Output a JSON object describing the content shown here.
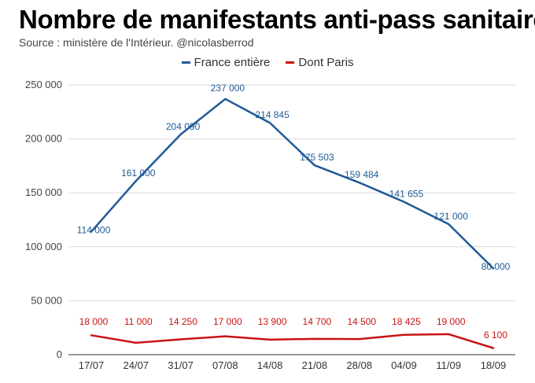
{
  "chart_data": {
    "type": "line",
    "title": "Nombre de manifestants anti-pass sanitaire",
    "subtitle": "Source : ministère de l'Intérieur. @nicolasberrod",
    "categories": [
      "17/07",
      "24/07",
      "31/07",
      "07/08",
      "14/08",
      "21/08",
      "28/08",
      "04/09",
      "11/09",
      "18/09"
    ],
    "series": [
      {
        "name": "France entière",
        "color": "#1f5a96",
        "values": [
          114000,
          161000,
          204090,
          237000,
          214845,
          175503,
          159484,
          141655,
          121000,
          80000
        ],
        "labels": [
          "114 000",
          "161 000",
          "204 090",
          "237 000",
          "214 845",
          "175 503",
          "159 484",
          "141 655",
          "121 000",
          "80 000"
        ]
      },
      {
        "name": "Dont Paris",
        "color": "#c81414",
        "values": [
          18000,
          11000,
          14250,
          17000,
          13900,
          14700,
          14500,
          18425,
          19000,
          6100
        ],
        "labels": [
          "18 000",
          "11 000",
          "14 250",
          "17 000",
          "13 900",
          "14 700",
          "14 500",
          "18 425",
          "19 000",
          "6 100"
        ]
      }
    ],
    "ylim": [
      0,
      250000
    ],
    "yticks": [
      0,
      50000,
      100000,
      150000,
      200000,
      250000
    ],
    "ytick_labels": [
      "0",
      "50 000",
      "100 000",
      "150 000",
      "200 000",
      "250 000"
    ],
    "xlabel": "",
    "ylabel": "",
    "grid": true,
    "legend_position": "top-center"
  }
}
